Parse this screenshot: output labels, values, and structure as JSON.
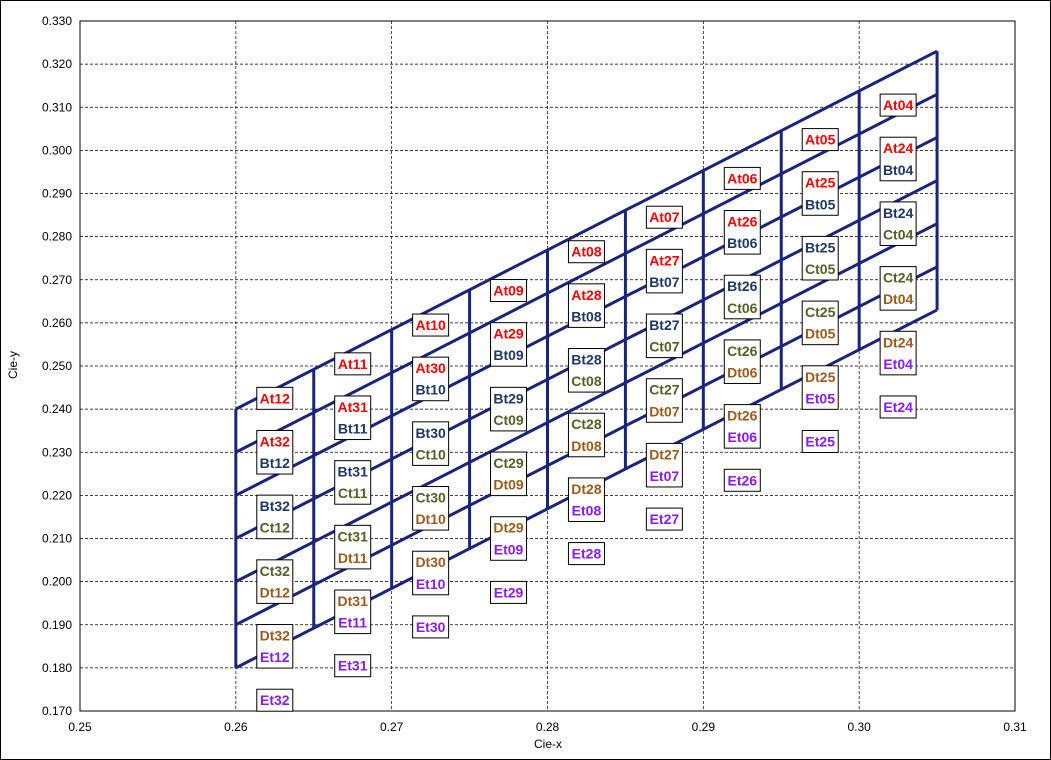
{
  "chart_data": {
    "type": "scatter",
    "title": "",
    "xlabel": "Cie-x",
    "ylabel": "Cie-y",
    "xlim": [
      0.25,
      0.31
    ],
    "ylim": [
      0.17,
      0.33
    ],
    "x_ticks": [
      "0.25",
      "0.26",
      "0.27",
      "0.28",
      "0.29",
      "0.30",
      "0.31"
    ],
    "y_ticks": [
      "0.170",
      "0.180",
      "0.190",
      "0.200",
      "0.210",
      "0.220",
      "0.230",
      "0.240",
      "0.250",
      "0.260",
      "0.270",
      "0.280",
      "0.290",
      "0.300",
      "0.310",
      "0.320",
      "0.330"
    ],
    "grid": true,
    "colors": {
      "At": "#ff0000",
      "Bt": "#1f3864",
      "Ct": "#4f6228",
      "Dt": "#9c5a1c",
      "Et": "#8a1aff",
      "mesh": "#1a237e"
    },
    "mesh": {
      "x_lines": [
        0.26,
        0.265,
        0.27,
        0.275,
        0.28,
        0.285,
        0.29,
        0.295,
        0.3,
        0.305
      ],
      "bottom_edge": [
        [
          0.26,
          0.18
        ],
        [
          0.305,
          0.263
        ]
      ],
      "top_edge": [
        [
          0.26,
          0.24
        ],
        [
          0.305,
          0.323
        ]
      ],
      "row_count": 7
    },
    "points": [
      {
        "label": "At12",
        "group": "At",
        "x": 0.2625,
        "y": 0.2425
      },
      {
        "label": "At32",
        "group": "At",
        "x": 0.2625,
        "y": 0.2325
      },
      {
        "label": "Bt12",
        "group": "Bt",
        "x": 0.2625,
        "y": 0.2275
      },
      {
        "label": "Bt32",
        "group": "Bt",
        "x": 0.2625,
        "y": 0.2175
      },
      {
        "label": "Ct12",
        "group": "Ct",
        "x": 0.2625,
        "y": 0.2125
      },
      {
        "label": "Ct32",
        "group": "Ct",
        "x": 0.2625,
        "y": 0.2025
      },
      {
        "label": "Dt12",
        "group": "Dt",
        "x": 0.2625,
        "y": 0.1975
      },
      {
        "label": "Dt32",
        "group": "Dt",
        "x": 0.2625,
        "y": 0.1875
      },
      {
        "label": "Et12",
        "group": "Et",
        "x": 0.2625,
        "y": 0.1825
      },
      {
        "label": "Et32",
        "group": "Et",
        "x": 0.2625,
        "y": 0.1725
      },
      {
        "label": "At11",
        "group": "At",
        "x": 0.2675,
        "y": 0.2505
      },
      {
        "label": "At31",
        "group": "At",
        "x": 0.2675,
        "y": 0.2405
      },
      {
        "label": "Bt11",
        "group": "Bt",
        "x": 0.2675,
        "y": 0.2355
      },
      {
        "label": "Bt31",
        "group": "Bt",
        "x": 0.2675,
        "y": 0.2255
      },
      {
        "label": "Ct11",
        "group": "Ct",
        "x": 0.2675,
        "y": 0.2205
      },
      {
        "label": "Ct31",
        "group": "Ct",
        "x": 0.2675,
        "y": 0.2105
      },
      {
        "label": "Dt11",
        "group": "Dt",
        "x": 0.2675,
        "y": 0.2055
      },
      {
        "label": "Dt31",
        "group": "Dt",
        "x": 0.2675,
        "y": 0.1955
      },
      {
        "label": "Et11",
        "group": "Et",
        "x": 0.2675,
        "y": 0.1905
      },
      {
        "label": "Et31",
        "group": "Et",
        "x": 0.2675,
        "y": 0.1805
      },
      {
        "label": "At10",
        "group": "At",
        "x": 0.2725,
        "y": 0.2595
      },
      {
        "label": "At30",
        "group": "At",
        "x": 0.2725,
        "y": 0.2495
      },
      {
        "label": "Bt10",
        "group": "Bt",
        "x": 0.2725,
        "y": 0.2445
      },
      {
        "label": "Bt30",
        "group": "Bt",
        "x": 0.2725,
        "y": 0.2345
      },
      {
        "label": "Ct10",
        "group": "Ct",
        "x": 0.2725,
        "y": 0.2295
      },
      {
        "label": "Ct30",
        "group": "Ct",
        "x": 0.2725,
        "y": 0.2195
      },
      {
        "label": "Dt10",
        "group": "Dt",
        "x": 0.2725,
        "y": 0.2145
      },
      {
        "label": "Dt30",
        "group": "Dt",
        "x": 0.2725,
        "y": 0.2045
      },
      {
        "label": "Et10",
        "group": "Et",
        "x": 0.2725,
        "y": 0.1995
      },
      {
        "label": "Et30",
        "group": "Et",
        "x": 0.2725,
        "y": 0.1895
      },
      {
        "label": "At09",
        "group": "At",
        "x": 0.2775,
        "y": 0.2675
      },
      {
        "label": "At29",
        "group": "At",
        "x": 0.2775,
        "y": 0.2575
      },
      {
        "label": "Bt09",
        "group": "Bt",
        "x": 0.2775,
        "y": 0.2525
      },
      {
        "label": "Bt29",
        "group": "Bt",
        "x": 0.2775,
        "y": 0.2425
      },
      {
        "label": "Ct09",
        "group": "Ct",
        "x": 0.2775,
        "y": 0.2375
      },
      {
        "label": "Ct29",
        "group": "Ct",
        "x": 0.2775,
        "y": 0.2275
      },
      {
        "label": "Dt09",
        "group": "Dt",
        "x": 0.2775,
        "y": 0.2225
      },
      {
        "label": "Dt29",
        "group": "Dt",
        "x": 0.2775,
        "y": 0.2125
      },
      {
        "label": "Et09",
        "group": "Et",
        "x": 0.2775,
        "y": 0.2075
      },
      {
        "label": "Et29",
        "group": "Et",
        "x": 0.2775,
        "y": 0.1975
      },
      {
        "label": "At08",
        "group": "At",
        "x": 0.2825,
        "y": 0.2765
      },
      {
        "label": "At28",
        "group": "At",
        "x": 0.2825,
        "y": 0.2665
      },
      {
        "label": "Bt08",
        "group": "Bt",
        "x": 0.2825,
        "y": 0.2615
      },
      {
        "label": "Bt28",
        "group": "Bt",
        "x": 0.2825,
        "y": 0.2515
      },
      {
        "label": "Ct08",
        "group": "Ct",
        "x": 0.2825,
        "y": 0.2465
      },
      {
        "label": "Ct28",
        "group": "Ct",
        "x": 0.2825,
        "y": 0.2365
      },
      {
        "label": "Dt08",
        "group": "Dt",
        "x": 0.2825,
        "y": 0.2315
      },
      {
        "label": "Dt28",
        "group": "Dt",
        "x": 0.2825,
        "y": 0.2215
      },
      {
        "label": "Et08",
        "group": "Et",
        "x": 0.2825,
        "y": 0.2165
      },
      {
        "label": "Et28",
        "group": "Et",
        "x": 0.2825,
        "y": 0.2065
      },
      {
        "label": "At07",
        "group": "At",
        "x": 0.2875,
        "y": 0.2845
      },
      {
        "label": "At27",
        "group": "At",
        "x": 0.2875,
        "y": 0.2745
      },
      {
        "label": "Bt07",
        "group": "Bt",
        "x": 0.2875,
        "y": 0.2695
      },
      {
        "label": "Bt27",
        "group": "Bt",
        "x": 0.2875,
        "y": 0.2595
      },
      {
        "label": "Ct07",
        "group": "Ct",
        "x": 0.2875,
        "y": 0.2545
      },
      {
        "label": "Ct27",
        "group": "Ct",
        "x": 0.2875,
        "y": 0.2445
      },
      {
        "label": "Dt07",
        "group": "Dt",
        "x": 0.2875,
        "y": 0.2395
      },
      {
        "label": "Dt27",
        "group": "Dt",
        "x": 0.2875,
        "y": 0.2295
      },
      {
        "label": "Et07",
        "group": "Et",
        "x": 0.2875,
        "y": 0.2245
      },
      {
        "label": "Et27",
        "group": "Et",
        "x": 0.2875,
        "y": 0.2145
      },
      {
        "label": "At06",
        "group": "At",
        "x": 0.2925,
        "y": 0.2935
      },
      {
        "label": "At26",
        "group": "At",
        "x": 0.2925,
        "y": 0.2835
      },
      {
        "label": "Bt06",
        "group": "Bt",
        "x": 0.2925,
        "y": 0.2785
      },
      {
        "label": "Bt26",
        "group": "Bt",
        "x": 0.2925,
        "y": 0.2685
      },
      {
        "label": "Ct06",
        "group": "Ct",
        "x": 0.2925,
        "y": 0.2635
      },
      {
        "label": "Ct26",
        "group": "Ct",
        "x": 0.2925,
        "y": 0.2535
      },
      {
        "label": "Dt06",
        "group": "Dt",
        "x": 0.2925,
        "y": 0.2485
      },
      {
        "label": "Dt26",
        "group": "Dt",
        "x": 0.2925,
        "y": 0.2385
      },
      {
        "label": "Et06",
        "group": "Et",
        "x": 0.2925,
        "y": 0.2335
      },
      {
        "label": "Et26",
        "group": "Et",
        "x": 0.2925,
        "y": 0.2235
      },
      {
        "label": "At05",
        "group": "At",
        "x": 0.2975,
        "y": 0.3025
      },
      {
        "label": "At25",
        "group": "At",
        "x": 0.2975,
        "y": 0.2925
      },
      {
        "label": "Bt05",
        "group": "Bt",
        "x": 0.2975,
        "y": 0.2875
      },
      {
        "label": "Bt25",
        "group": "Bt",
        "x": 0.2975,
        "y": 0.2775
      },
      {
        "label": "Ct05",
        "group": "Ct",
        "x": 0.2975,
        "y": 0.2725
      },
      {
        "label": "Ct25",
        "group": "Ct",
        "x": 0.2975,
        "y": 0.2625
      },
      {
        "label": "Dt05",
        "group": "Dt",
        "x": 0.2975,
        "y": 0.2575
      },
      {
        "label": "Dt25",
        "group": "Dt",
        "x": 0.2975,
        "y": 0.2475
      },
      {
        "label": "Et05",
        "group": "Et",
        "x": 0.2975,
        "y": 0.2425
      },
      {
        "label": "Et25",
        "group": "Et",
        "x": 0.2975,
        "y": 0.2325
      },
      {
        "label": "At04",
        "group": "At",
        "x": 0.3025,
        "y": 0.3105
      },
      {
        "label": "At24",
        "group": "At",
        "x": 0.3025,
        "y": 0.3005
      },
      {
        "label": "Bt04",
        "group": "Bt",
        "x": 0.3025,
        "y": 0.2955
      },
      {
        "label": "Bt24",
        "group": "Bt",
        "x": 0.3025,
        "y": 0.2855
      },
      {
        "label": "Ct04",
        "group": "Ct",
        "x": 0.3025,
        "y": 0.2805
      },
      {
        "label": "Ct24",
        "group": "Ct",
        "x": 0.3025,
        "y": 0.2705
      },
      {
        "label": "Dt04",
        "group": "Dt",
        "x": 0.3025,
        "y": 0.2655
      },
      {
        "label": "Dt24",
        "group": "Dt",
        "x": 0.3025,
        "y": 0.2555
      },
      {
        "label": "Et04",
        "group": "Et",
        "x": 0.3025,
        "y": 0.2505
      },
      {
        "label": "Et24",
        "group": "Et",
        "x": 0.3025,
        "y": 0.2405
      }
    ]
  }
}
